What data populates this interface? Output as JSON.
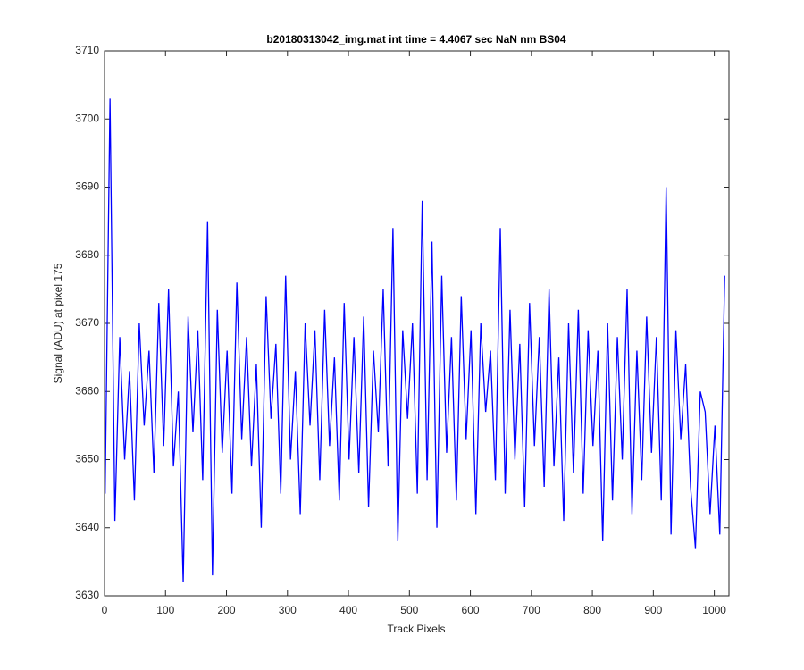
{
  "chart_data": {
    "type": "line",
    "title": "b20180313042_img.mat int time = 4.4067 sec  NaN nm BS04",
    "x_label": "Track Pixels",
    "y_label": "Signal (ADU) at pixel 175",
    "xlim": [
      0,
      1024
    ],
    "xticks": [
      0,
      100,
      200,
      300,
      400,
      500,
      600,
      700,
      800,
      900,
      1000
    ],
    "ylim": [
      3630,
      3710
    ],
    "yticks": [
      3630,
      3640,
      3650,
      3660,
      3670,
      3680,
      3690,
      3700,
      3710
    ],
    "x": [
      1,
      9,
      17,
      25,
      33,
      41,
      49,
      57,
      65,
      73,
      81,
      89,
      97,
      105,
      113,
      121,
      129,
      137,
      145,
      153,
      161,
      169,
      177,
      185,
      193,
      201,
      209,
      217,
      225,
      233,
      241,
      249,
      257,
      265,
      273,
      281,
      289,
      297,
      305,
      313,
      321,
      329,
      337,
      345,
      353,
      361,
      369,
      377,
      385,
      393,
      401,
      409,
      417,
      425,
      433,
      441,
      449,
      457,
      465,
      473,
      481,
      489,
      497,
      505,
      513,
      521,
      529,
      537,
      545,
      553,
      561,
      569,
      577,
      585,
      593,
      601,
      609,
      617,
      625,
      633,
      641,
      649,
      657,
      665,
      673,
      681,
      689,
      697,
      705,
      713,
      721,
      729,
      737,
      745,
      753,
      761,
      769,
      777,
      785,
      793,
      801,
      809,
      817,
      825,
      833,
      841,
      849,
      857,
      865,
      873,
      881,
      889,
      897,
      905,
      913,
      921,
      929,
      937,
      945,
      953,
      961,
      969,
      977,
      985,
      993,
      1001,
      1009,
      1017
    ],
    "series": [
      {
        "color": "#0000ff",
        "values": [
          3645,
          3703,
          3641,
          3668,
          3650,
          3663,
          3644,
          3670,
          3655,
          3666,
          3648,
          3673,
          3652,
          3675,
          3649,
          3660,
          3632,
          3671,
          3654,
          3669,
          3647,
          3685,
          3633,
          3672,
          3651,
          3666,
          3645,
          3676,
          3653,
          3668,
          3649,
          3664,
          3640,
          3674,
          3656,
          3667,
          3645,
          3677,
          3650,
          3663,
          3642,
          3670,
          3655,
          3669,
          3647,
          3672,
          3652,
          3665,
          3644,
          3673,
          3650,
          3668,
          3648,
          3671,
          3643,
          3666,
          3654,
          3675,
          3649,
          3684,
          3638,
          3669,
          3656,
          3670,
          3645,
          3688,
          3647,
          3682,
          3640,
          3677,
          3651,
          3668,
          3644,
          3674,
          3653,
          3669,
          3642,
          3670,
          3657,
          3666,
          3647,
          3684,
          3645,
          3672,
          3650,
          3667,
          3643,
          3673,
          3652,
          3668,
          3646,
          3675,
          3649,
          3665,
          3641,
          3670,
          3648,
          3672,
          3645,
          3669,
          3652,
          3666,
          3638,
          3670,
          3644,
          3668,
          3650,
          3675,
          3642,
          3666,
          3647,
          3671,
          3651,
          3668,
          3644,
          3690,
          3639,
          3669,
          3653,
          3664,
          3646,
          3637,
          3660,
          3657,
          3642,
          3655,
          3639,
          3677
        ]
      }
    ]
  }
}
